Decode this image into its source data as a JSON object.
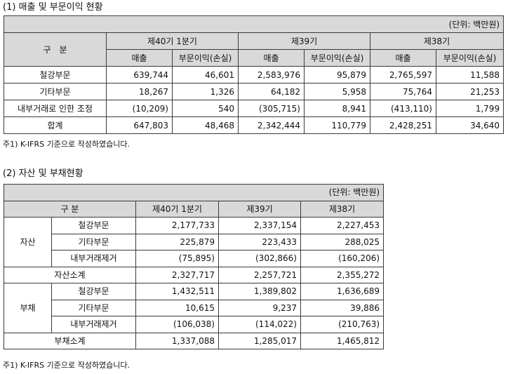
{
  "section1": {
    "title": "(1) 매출 및 부문이익 현황",
    "unit": "(단위: 백만원)",
    "header_category": "구　분",
    "periods": [
      "제40기 1분기",
      "제39기",
      "제38기"
    ],
    "sub_headers": [
      "매출",
      "부문이익(손실)"
    ],
    "rows": [
      {
        "label": "철강부문",
        "values": [
          "639,744",
          "46,601",
          "2,583,976",
          "95,879",
          "2,765,597",
          "11,588"
        ]
      },
      {
        "label": "기타부문",
        "values": [
          "18,267",
          "1,326",
          "64,182",
          "5,958",
          "75,764",
          "21,253"
        ]
      },
      {
        "label": "내부거래로 인한 조정",
        "values": [
          "(10,209)",
          "540",
          "(305,715)",
          "8,941",
          "(413,110)",
          "1,799"
        ]
      },
      {
        "label": "합계",
        "values": [
          "647,803",
          "48,468",
          "2,342,444",
          "110,779",
          "2,428,251",
          "34,640"
        ]
      }
    ],
    "note": "주1) K-IFRS 기준으로 작성하였습니다."
  },
  "section2": {
    "title": "(2) 자산 및 부채현황",
    "unit": "(단위: 백만원)",
    "header_category": "구 분",
    "periods": [
      "제40기 1분기",
      "제39기",
      "제38기"
    ],
    "groups": [
      {
        "label": "자산",
        "rows": [
          {
            "label": "철강부문",
            "values": [
              "2,177,733",
              "2,337,154",
              "2,227,453"
            ]
          },
          {
            "label": "기타부문",
            "values": [
              "225,879",
              "223,433",
              "288,025"
            ]
          },
          {
            "label": "내부거래제거",
            "values": [
              "(75,895)",
              "(302,866)",
              "(160,206)"
            ]
          }
        ],
        "subtotal": {
          "label": "자산소계",
          "values": [
            "2,327,717",
            "2,257,721",
            "2,355,272"
          ]
        }
      },
      {
        "label": "부채",
        "rows": [
          {
            "label": "철강부문",
            "values": [
              "1,432,511",
              "1,389,802",
              "1,636,689"
            ]
          },
          {
            "label": "기타부문",
            "values": [
              "10,615",
              "9,237",
              "39,886"
            ]
          },
          {
            "label": "내부거래제거",
            "values": [
              "(106,038)",
              "(114,022)",
              "(210,763)"
            ]
          }
        ],
        "subtotal": {
          "label": "부채소계",
          "values": [
            "1,337,088",
            "1,285,017",
            "1,465,812"
          ]
        }
      }
    ],
    "note": "주1) K-IFRS 기준으로 작성하였습니다."
  },
  "colors": {
    "header_bg": "#d9d9d9",
    "border": "#3a3a3a",
    "text": "#111111"
  }
}
